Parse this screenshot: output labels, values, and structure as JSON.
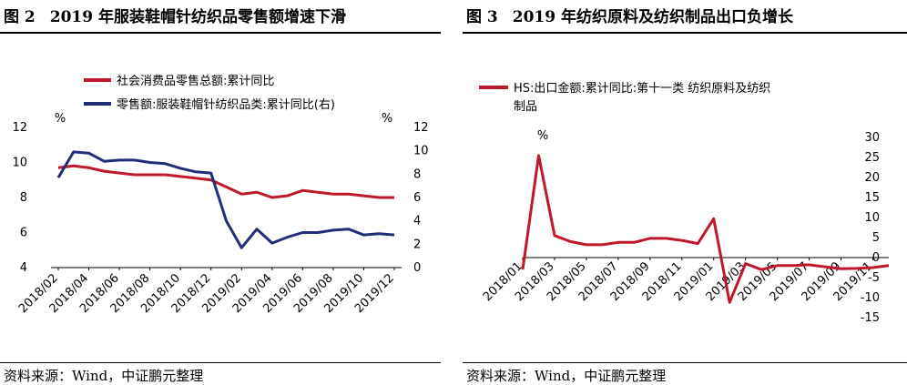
{
  "left": {
    "fig_no": "图 2",
    "title": "2019 年服装鞋帽针纺织品零售额增速下滑",
    "source": "资料来源：Wind，中证鹏元整理",
    "chart_data": {
      "type": "line",
      "categories": [
        "2018/02",
        "2018/03",
        "2018/04",
        "2018/05",
        "2018/06",
        "2018/07",
        "2018/08",
        "2018/09",
        "2018/10",
        "2018/11",
        "2018/12",
        "2019/01",
        "2019/02",
        "2019/03",
        "2019/04",
        "2019/05",
        "2019/06",
        "2019/07",
        "2019/08",
        "2019/09",
        "2019/10",
        "2019/11",
        "2019/12"
      ],
      "x_tick_labels": [
        "2018/02",
        "2018/04",
        "2018/06",
        "2018/08",
        "2018/10",
        "2018/12",
        "2019/02",
        "2019/04",
        "2019/06",
        "2019/08",
        "2019/10",
        "2019/12"
      ],
      "y_left": {
        "unit": "%",
        "min": 4,
        "max": 12,
        "ticks": [
          4,
          6,
          8,
          10,
          12
        ]
      },
      "y_right": {
        "unit": "%",
        "min": 0,
        "max": 12,
        "ticks": [
          0,
          2,
          4,
          6,
          8,
          10,
          12
        ]
      },
      "legend_position": "top",
      "series": [
        {
          "name": "社会消费品零售总额:累计同比",
          "axis": "left",
          "color": "#c0182a",
          "values": [
            9.7,
            9.8,
            9.7,
            9.5,
            9.4,
            9.3,
            9.3,
            9.3,
            9.2,
            9.1,
            9.0,
            8.6,
            8.2,
            8.3,
            8.0,
            8.1,
            8.4,
            8.3,
            8.2,
            8.2,
            8.1,
            8.0,
            8.0
          ]
        },
        {
          "name": "零售额:服装鞋帽针纺织品类:累计同比(右)",
          "axis": "right",
          "color": "#1f2d7a",
          "values": [
            7.7,
            9.9,
            9.8,
            9.1,
            9.2,
            9.2,
            9.0,
            8.9,
            8.5,
            8.2,
            8.1,
            4.0,
            1.7,
            3.3,
            2.1,
            2.6,
            3.0,
            3.0,
            3.2,
            3.3,
            2.8,
            2.9,
            2.8
          ]
        }
      ]
    }
  },
  "right": {
    "fig_no": "图 3",
    "title": "2019 年纺织原料及纺织制品出口负增长",
    "source": "资料来源：Wind，中证鹏元整理",
    "chart_data": {
      "type": "line",
      "categories": [
        "2018/01",
        "2018/02",
        "2018/03",
        "2018/04",
        "2018/05",
        "2018/06",
        "2018/07",
        "2018/08",
        "2018/09",
        "2018/10",
        "2018/11",
        "2018/12",
        "2019/01",
        "2019/02",
        "2019/03",
        "2019/04",
        "2019/05",
        "2019/06",
        "2019/07",
        "2019/08",
        "2019/09",
        "2019/10",
        "2019/11",
        "2019/12"
      ],
      "x_tick_labels": [
        "2018/01",
        "2018/03",
        "2018/05",
        "2018/07",
        "2018/09",
        "2018/11",
        "2019/01",
        "2019/03",
        "2019/05",
        "2019/07",
        "2019/09",
        "2019/11"
      ],
      "y_right": {
        "unit": "%",
        "min": -15,
        "max": 30,
        "ticks": [
          -15,
          -10,
          -5,
          0,
          5,
          10,
          15,
          20,
          25,
          30
        ]
      },
      "legend_position": "top",
      "series": [
        {
          "name_line1": "HS:出口金额:累计同比:第十一类 纺织原料及纺织",
          "name_line2": "制品",
          "axis": "right",
          "color": "#c0182a",
          "values": [
            -3.0,
            25.5,
            5.5,
            4.0,
            3.2,
            3.2,
            3.8,
            3.8,
            4.8,
            4.8,
            4.3,
            3.5,
            9.7,
            -11.2,
            -1.5,
            -3.0,
            -2.0,
            -2.0,
            -1.8,
            -2.3,
            -2.8,
            -2.7,
            -2.5,
            -2.0
          ]
        }
      ]
    }
  }
}
